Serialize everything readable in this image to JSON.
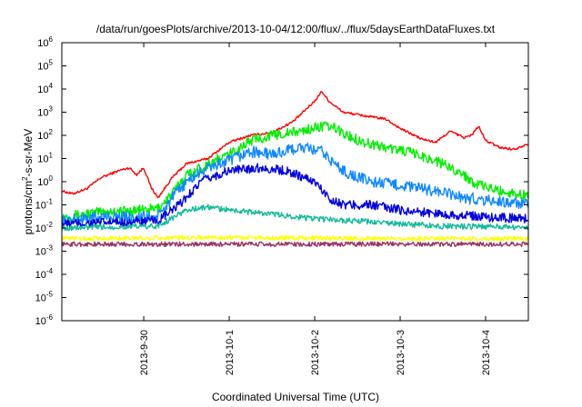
{
  "chart_data": {
    "type": "line",
    "title": "/data/run/goesPlots/archive/2013-10-04/12:00/flux/../flux/5daysEarthDataFluxes.txt",
    "xlabel": "Coordinated Universal Time (UTC)",
    "ylabel": {
      "prefix": "protons/cm",
      "sup": "2",
      "suffix": "-s-sr-MeV"
    },
    "yscale": "log",
    "ylim": [
      1e-06,
      1000000.0
    ],
    "y_ticks": [
      {
        "base": "10",
        "exp": "-6"
      },
      {
        "base": "10",
        "exp": "-5"
      },
      {
        "base": "10",
        "exp": "-4"
      },
      {
        "base": "10",
        "exp": "-3"
      },
      {
        "base": "10",
        "exp": "-2"
      },
      {
        "base": "10",
        "exp": "-1"
      },
      {
        "base": "10",
        "exp": "0"
      },
      {
        "base": "10",
        "exp": "1"
      },
      {
        "base": "10",
        "exp": "2"
      },
      {
        "base": "10",
        "exp": "3"
      },
      {
        "base": "10",
        "exp": "4"
      },
      {
        "base": "10",
        "exp": "5"
      },
      {
        "base": "10",
        "exp": "6"
      }
    ],
    "xlim": [
      "2013-09-29 01:00",
      "2013-10-04 12:00"
    ],
    "x_ticks": [
      "2013-9-30",
      "2013-10-1",
      "2013-10-2",
      "2013-10-3",
      "2013-10-4"
    ],
    "grid": false,
    "legend": "none",
    "series": [
      {
        "color": "#ff0000",
        "noise": 0.05,
        "points": [
          [
            "2013-09-29 01:00",
            0.4
          ],
          [
            "2013-09-29 04:00",
            0.3
          ],
          [
            "2013-09-29 08:00",
            0.5
          ],
          [
            "2013-09-29 12:00",
            1.5
          ],
          [
            "2013-09-29 17:00",
            3
          ],
          [
            "2013-09-29 20:00",
            4
          ],
          [
            "2013-09-29 22:00",
            2
          ],
          [
            "2013-09-30 00:00",
            4
          ],
          [
            "2013-09-30 02:00",
            0.6
          ],
          [
            "2013-09-30 04:00",
            0.2
          ],
          [
            "2013-09-30 08:00",
            1.5
          ],
          [
            "2013-09-30 12:00",
            6
          ],
          [
            "2013-09-30 18:00",
            10
          ],
          [
            "2013-10-01 00:00",
            50
          ],
          [
            "2013-10-01 06:00",
            100
          ],
          [
            "2013-10-01 12:00",
            130
          ],
          [
            "2013-10-01 18:00",
            400
          ],
          [
            "2013-10-02 00:00",
            3000
          ],
          [
            "2013-10-02 02:00",
            8000
          ],
          [
            "2013-10-02 04:00",
            3000
          ],
          [
            "2013-10-02 08:00",
            1000
          ],
          [
            "2013-10-02 14:00",
            700
          ],
          [
            "2013-10-02 20:00",
            500
          ],
          [
            "2013-10-03 00:00",
            200
          ],
          [
            "2013-10-03 06:00",
            70
          ],
          [
            "2013-10-03 10:00",
            50
          ],
          [
            "2013-10-03 14:00",
            150
          ],
          [
            "2013-10-03 18:00",
            80
          ],
          [
            "2013-10-03 20:00",
            100
          ],
          [
            "2013-10-03 22:00",
            250
          ],
          [
            "2013-10-04 00:00",
            60
          ],
          [
            "2013-10-04 04:00",
            30
          ],
          [
            "2013-10-04 08:00",
            25
          ],
          [
            "2013-10-04 12:00",
            45
          ]
        ]
      },
      {
        "color": "#00ee00",
        "noise": 0.22,
        "points": [
          [
            "2013-09-29 01:00",
            0.03
          ],
          [
            "2013-09-29 12:00",
            0.05
          ],
          [
            "2013-09-30 00:00",
            0.06
          ],
          [
            "2013-09-30 04:00",
            0.07
          ],
          [
            "2013-09-30 08:00",
            0.3
          ],
          [
            "2013-09-30 12:00",
            2
          ],
          [
            "2013-09-30 18:00",
            6
          ],
          [
            "2013-10-01 00:00",
            15
          ],
          [
            "2013-10-01 06:00",
            60
          ],
          [
            "2013-10-01 12:00",
            100
          ],
          [
            "2013-10-01 20:00",
            150
          ],
          [
            "2013-10-02 02:00",
            250
          ],
          [
            "2013-10-02 06:00",
            200
          ],
          [
            "2013-10-02 09:00",
            100
          ],
          [
            "2013-10-02 14:00",
            50
          ],
          [
            "2013-10-02 20:00",
            30
          ],
          [
            "2013-10-03 02:00",
            20
          ],
          [
            "2013-10-03 10:00",
            8
          ],
          [
            "2013-10-03 16:00",
            3
          ],
          [
            "2013-10-03 22:00",
            0.7
          ],
          [
            "2013-10-04 04:00",
            0.4
          ],
          [
            "2013-10-04 12:00",
            0.25
          ]
        ]
      },
      {
        "color": "#1188ff",
        "noise": 0.25,
        "points": [
          [
            "2013-09-29 01:00",
            0.02
          ],
          [
            "2013-09-29 12:00",
            0.03
          ],
          [
            "2013-09-30 04:00",
            0.03
          ],
          [
            "2013-09-30 08:00",
            0.2
          ],
          [
            "2013-09-30 12:00",
            1
          ],
          [
            "2013-09-30 18:00",
            4
          ],
          [
            "2013-10-01 00:00",
            8
          ],
          [
            "2013-10-01 06:00",
            20
          ],
          [
            "2013-10-01 12:00",
            15
          ],
          [
            "2013-10-01 20:00",
            30
          ],
          [
            "2013-10-02 02:00",
            20
          ],
          [
            "2013-10-02 06:00",
            5
          ],
          [
            "2013-10-02 10:00",
            2
          ],
          [
            "2013-10-02 16:00",
            1
          ],
          [
            "2013-10-03 00:00",
            0.7
          ],
          [
            "2013-10-03 10:00",
            0.4
          ],
          [
            "2013-10-03 18:00",
            0.2
          ],
          [
            "2013-10-04 02:00",
            0.15
          ],
          [
            "2013-10-04 12:00",
            0.1
          ]
        ]
      },
      {
        "color": "#0000dd",
        "noise": 0.2,
        "points": [
          [
            "2013-09-29 01:00",
            0.015
          ],
          [
            "2013-09-30 04:00",
            0.02
          ],
          [
            "2013-09-30 10:00",
            0.1
          ],
          [
            "2013-09-30 16:00",
            1
          ],
          [
            "2013-10-01 00:00",
            3
          ],
          [
            "2013-10-01 08:00",
            4
          ],
          [
            "2013-10-01 16:00",
            3
          ],
          [
            "2013-10-02 00:00",
            1
          ],
          [
            "2013-10-02 04:00",
            0.2
          ],
          [
            "2013-10-02 08:00",
            0.1
          ],
          [
            "2013-10-02 16:00",
            0.1
          ],
          [
            "2013-10-03 00:00",
            0.06
          ],
          [
            "2013-10-03 12:00",
            0.04
          ],
          [
            "2013-10-04 00:00",
            0.03
          ],
          [
            "2013-10-04 12:00",
            0.025
          ]
        ]
      },
      {
        "color": "#11bb99",
        "noise": 0.12,
        "points": [
          [
            "2013-09-29 01:00",
            0.01
          ],
          [
            "2013-09-30 04:00",
            0.012
          ],
          [
            "2013-09-30 12:00",
            0.06
          ],
          [
            "2013-09-30 18:00",
            0.08
          ],
          [
            "2013-10-01 00:00",
            0.06
          ],
          [
            "2013-10-01 12:00",
            0.04
          ],
          [
            "2013-10-02 00:00",
            0.025
          ],
          [
            "2013-10-02 12:00",
            0.02
          ],
          [
            "2013-10-03 00:00",
            0.015
          ],
          [
            "2013-10-03 12:00",
            0.012
          ],
          [
            "2013-10-04 12:00",
            0.011
          ]
        ]
      },
      {
        "color": "#ffff00",
        "noise": 0.1,
        "points": [
          [
            "2013-09-29 01:00",
            0.0035
          ],
          [
            "2013-10-01 00:00",
            0.004
          ],
          [
            "2013-10-02 12:00",
            0.0035
          ],
          [
            "2013-10-04 12:00",
            0.0035
          ]
        ]
      },
      {
        "color": "#993366",
        "noise": 0.1,
        "points": [
          [
            "2013-09-29 01:00",
            0.002
          ],
          [
            "2013-10-04 12:00",
            0.002
          ]
        ]
      }
    ]
  }
}
